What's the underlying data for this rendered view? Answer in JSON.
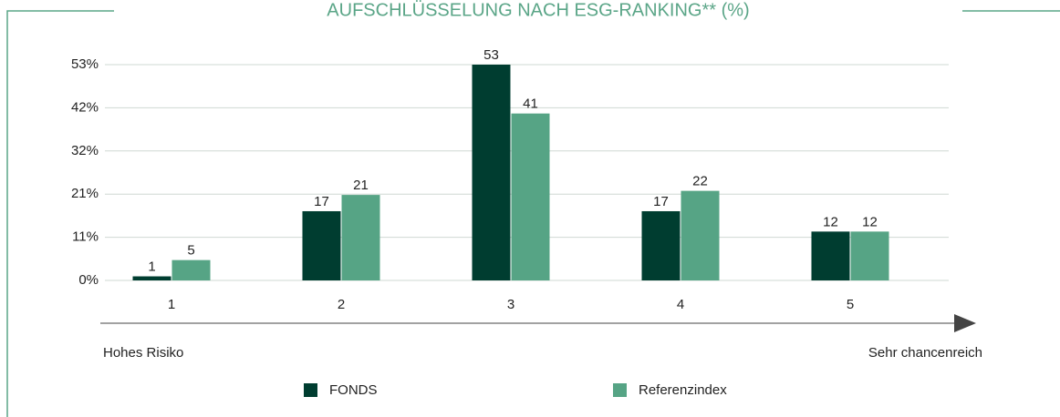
{
  "chart_data": {
    "type": "bar",
    "title": "AUFSCHLÜSSELUNG NACH ESG-RANKING** (%)",
    "categories": [
      "1",
      "2",
      "3",
      "4",
      "5"
    ],
    "series": [
      {
        "name": "FONDS",
        "color": "#003d30",
        "values": [
          1,
          17,
          53,
          17,
          12
        ]
      },
      {
        "name": "Referenzindex",
        "color": "#56a485",
        "values": [
          5,
          21,
          41,
          22,
          12
        ]
      }
    ],
    "ylim": [
      0,
      53
    ],
    "yticks": [
      {
        "value": 0,
        "label": "0%"
      },
      {
        "value": 10.6,
        "label": "11%"
      },
      {
        "value": 21.2,
        "label": "21%"
      },
      {
        "value": 31.8,
        "label": "32%"
      },
      {
        "value": 42.4,
        "label": "42%"
      },
      {
        "value": 53,
        "label": "53%"
      }
    ],
    "grid": true,
    "annotations": [
      "Hohes Risiko",
      "Sehr chancenreich"
    ],
    "legend": "bottom"
  }
}
